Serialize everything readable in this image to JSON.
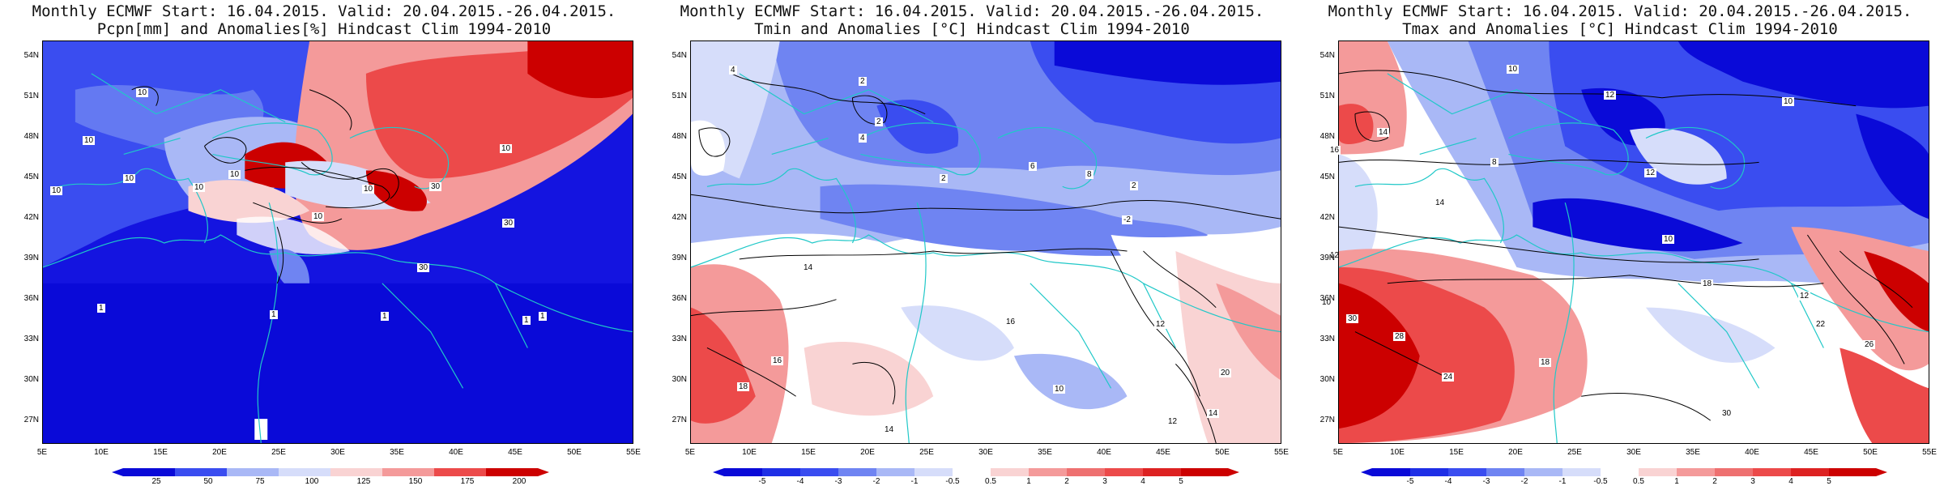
{
  "panels": [
    {
      "title_line1": "Monthly ECMWF Start: 16.04.2015. Valid: 20.04.2015.-26.04.2015.",
      "title_line2": "Pcpn[mm] and Anomalies[%] Hindcast Clim 1994-2010",
      "colorbar_labels": [
        "25",
        "50",
        "75",
        "100",
        "125",
        "150",
        "175",
        "200"
      ],
      "contour_labels": [
        "10",
        "10",
        "10",
        "10",
        "10",
        "10",
        "10",
        "10",
        "10",
        "30",
        "30",
        "30",
        "1",
        "1",
        "1",
        "1",
        "1"
      ]
    },
    {
      "title_line1": "Monthly ECMWF Start: 16.04.2015. Valid: 20.04.2015.-26.04.2015.",
      "title_line2": "Tmin and Anomalies [°C] Hindcast Clim 1994-2010",
      "colorbar_labels": [
        "-5",
        "-4",
        "-3",
        "-2",
        "-1",
        "-0.5",
        "0.5",
        "1",
        "2",
        "3",
        "4",
        "5"
      ],
      "contour_labels": [
        "4",
        "2",
        "2",
        "4",
        "6",
        "2",
        "8",
        "2",
        "-2",
        "12",
        "14",
        "16",
        "10",
        "18",
        "14",
        "10",
        "12",
        "14",
        "16",
        "20",
        "12"
      ]
    },
    {
      "title_line1": "Monthly ECMWF Start: 16.04.2015. Valid: 20.04.2015.-26.04.2015.",
      "title_line2": "Tmax and Anomalies [°C] Hindcast Clim 1994-2010",
      "colorbar_labels": [
        "-5",
        "-4",
        "-3",
        "-2",
        "-1",
        "-0.5",
        "0.5",
        "1",
        "2",
        "3",
        "4",
        "5"
      ],
      "contour_labels": [
        "10",
        "10",
        "12",
        "14",
        "16",
        "12",
        "8",
        "10",
        "14",
        "18",
        "26",
        "30",
        "28",
        "24",
        "18",
        "30",
        "22",
        "12"
      ]
    }
  ],
  "lat_labels": [
    "54N",
    "51N",
    "48N",
    "45N",
    "42N",
    "39N",
    "36N",
    "33N",
    "30N",
    "27N"
  ],
  "lon_labels": [
    "5E",
    "10E",
    "15E",
    "20E",
    "25E",
    "30E",
    "35E",
    "40E",
    "45E",
    "50E",
    "55E"
  ],
  "colors": {
    "dark_blue": "#0a0ad8",
    "blue": "#3a4df0",
    "mid_blue": "#6f84f2",
    "light_blue": "#a9b8f6",
    "pale_blue": "#d6ddfa",
    "white": "#ffffff",
    "pale_red": "#f9d3d3",
    "light_red": "#f49a9a",
    "red": "#ec4a4a",
    "dark_red": "#cc0000",
    "coast": "#20c8c8"
  }
}
